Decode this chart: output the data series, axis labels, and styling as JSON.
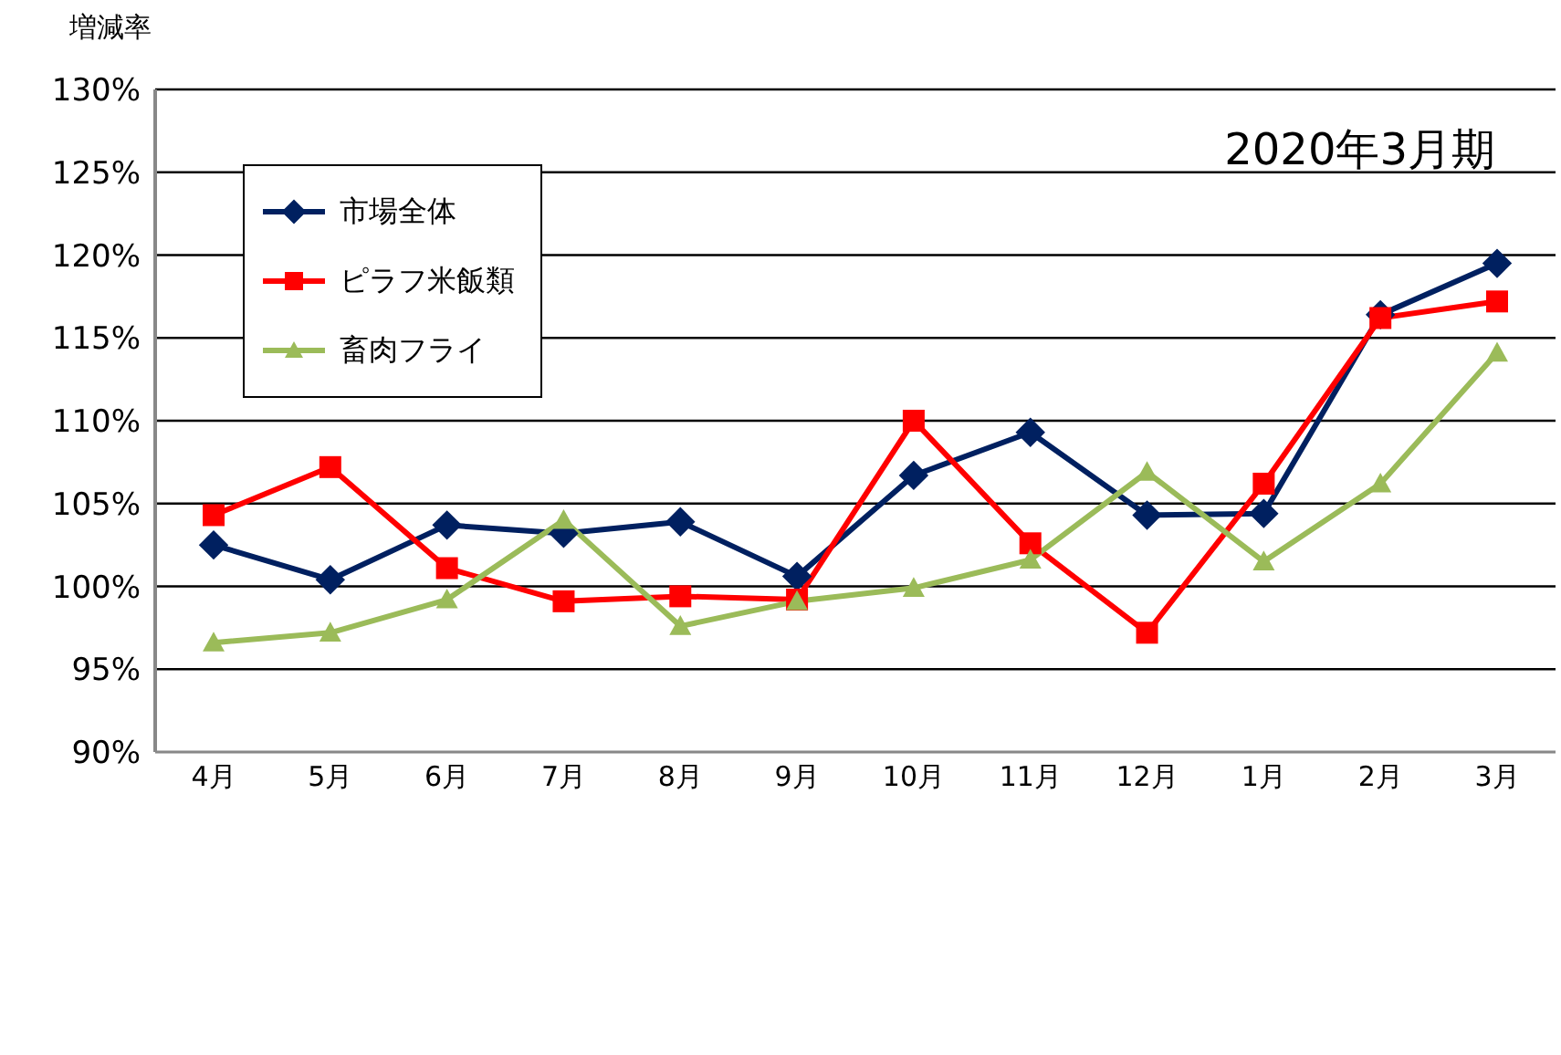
{
  "chart_data": {
    "type": "line",
    "ylabel": "増減率",
    "annotations": [
      "2020年3月期"
    ],
    "categories": [
      "4月",
      "5月",
      "6月",
      "7月",
      "8月",
      "9月",
      "10月",
      "11月",
      "12月",
      "1月",
      "2月",
      "3月"
    ],
    "series": [
      {
        "name": "市場全体",
        "color": "#002060",
        "marker": "diamond",
        "values": [
          102.5,
          100.4,
          103.7,
          103.2,
          103.9,
          100.6,
          106.7,
          109.3,
          104.3,
          104.4,
          116.4,
          119.5
        ]
      },
      {
        "name": "ピラフ米飯類",
        "color": "#ff0000",
        "marker": "square",
        "values": [
          104.3,
          107.2,
          101.1,
          99.1,
          99.4,
          99.2,
          110.0,
          102.6,
          97.2,
          106.2,
          116.2,
          117.2
        ]
      },
      {
        "name": "畜肉フライ",
        "color": "#9bbb59",
        "marker": "triangle",
        "values": [
          96.6,
          97.2,
          99.2,
          104.0,
          97.6,
          99.1,
          99.9,
          101.6,
          106.9,
          101.5,
          106.2,
          114.1
        ]
      }
    ],
    "ylim": [
      90,
      130
    ],
    "yticks": [
      {
        "value": 90,
        "label": "90%"
      },
      {
        "value": 95,
        "label": "95%"
      },
      {
        "value": 100,
        "label": "100%"
      },
      {
        "value": 105,
        "label": "105%"
      },
      {
        "value": 110,
        "label": "110%"
      },
      {
        "value": 115,
        "label": "115%"
      },
      {
        "value": 120,
        "label": "120%"
      },
      {
        "value": 125,
        "label": "125%"
      },
      {
        "value": 130,
        "label": "130%"
      }
    ],
    "grid": "y",
    "legend": "top left",
    "line_style": "solid"
  }
}
